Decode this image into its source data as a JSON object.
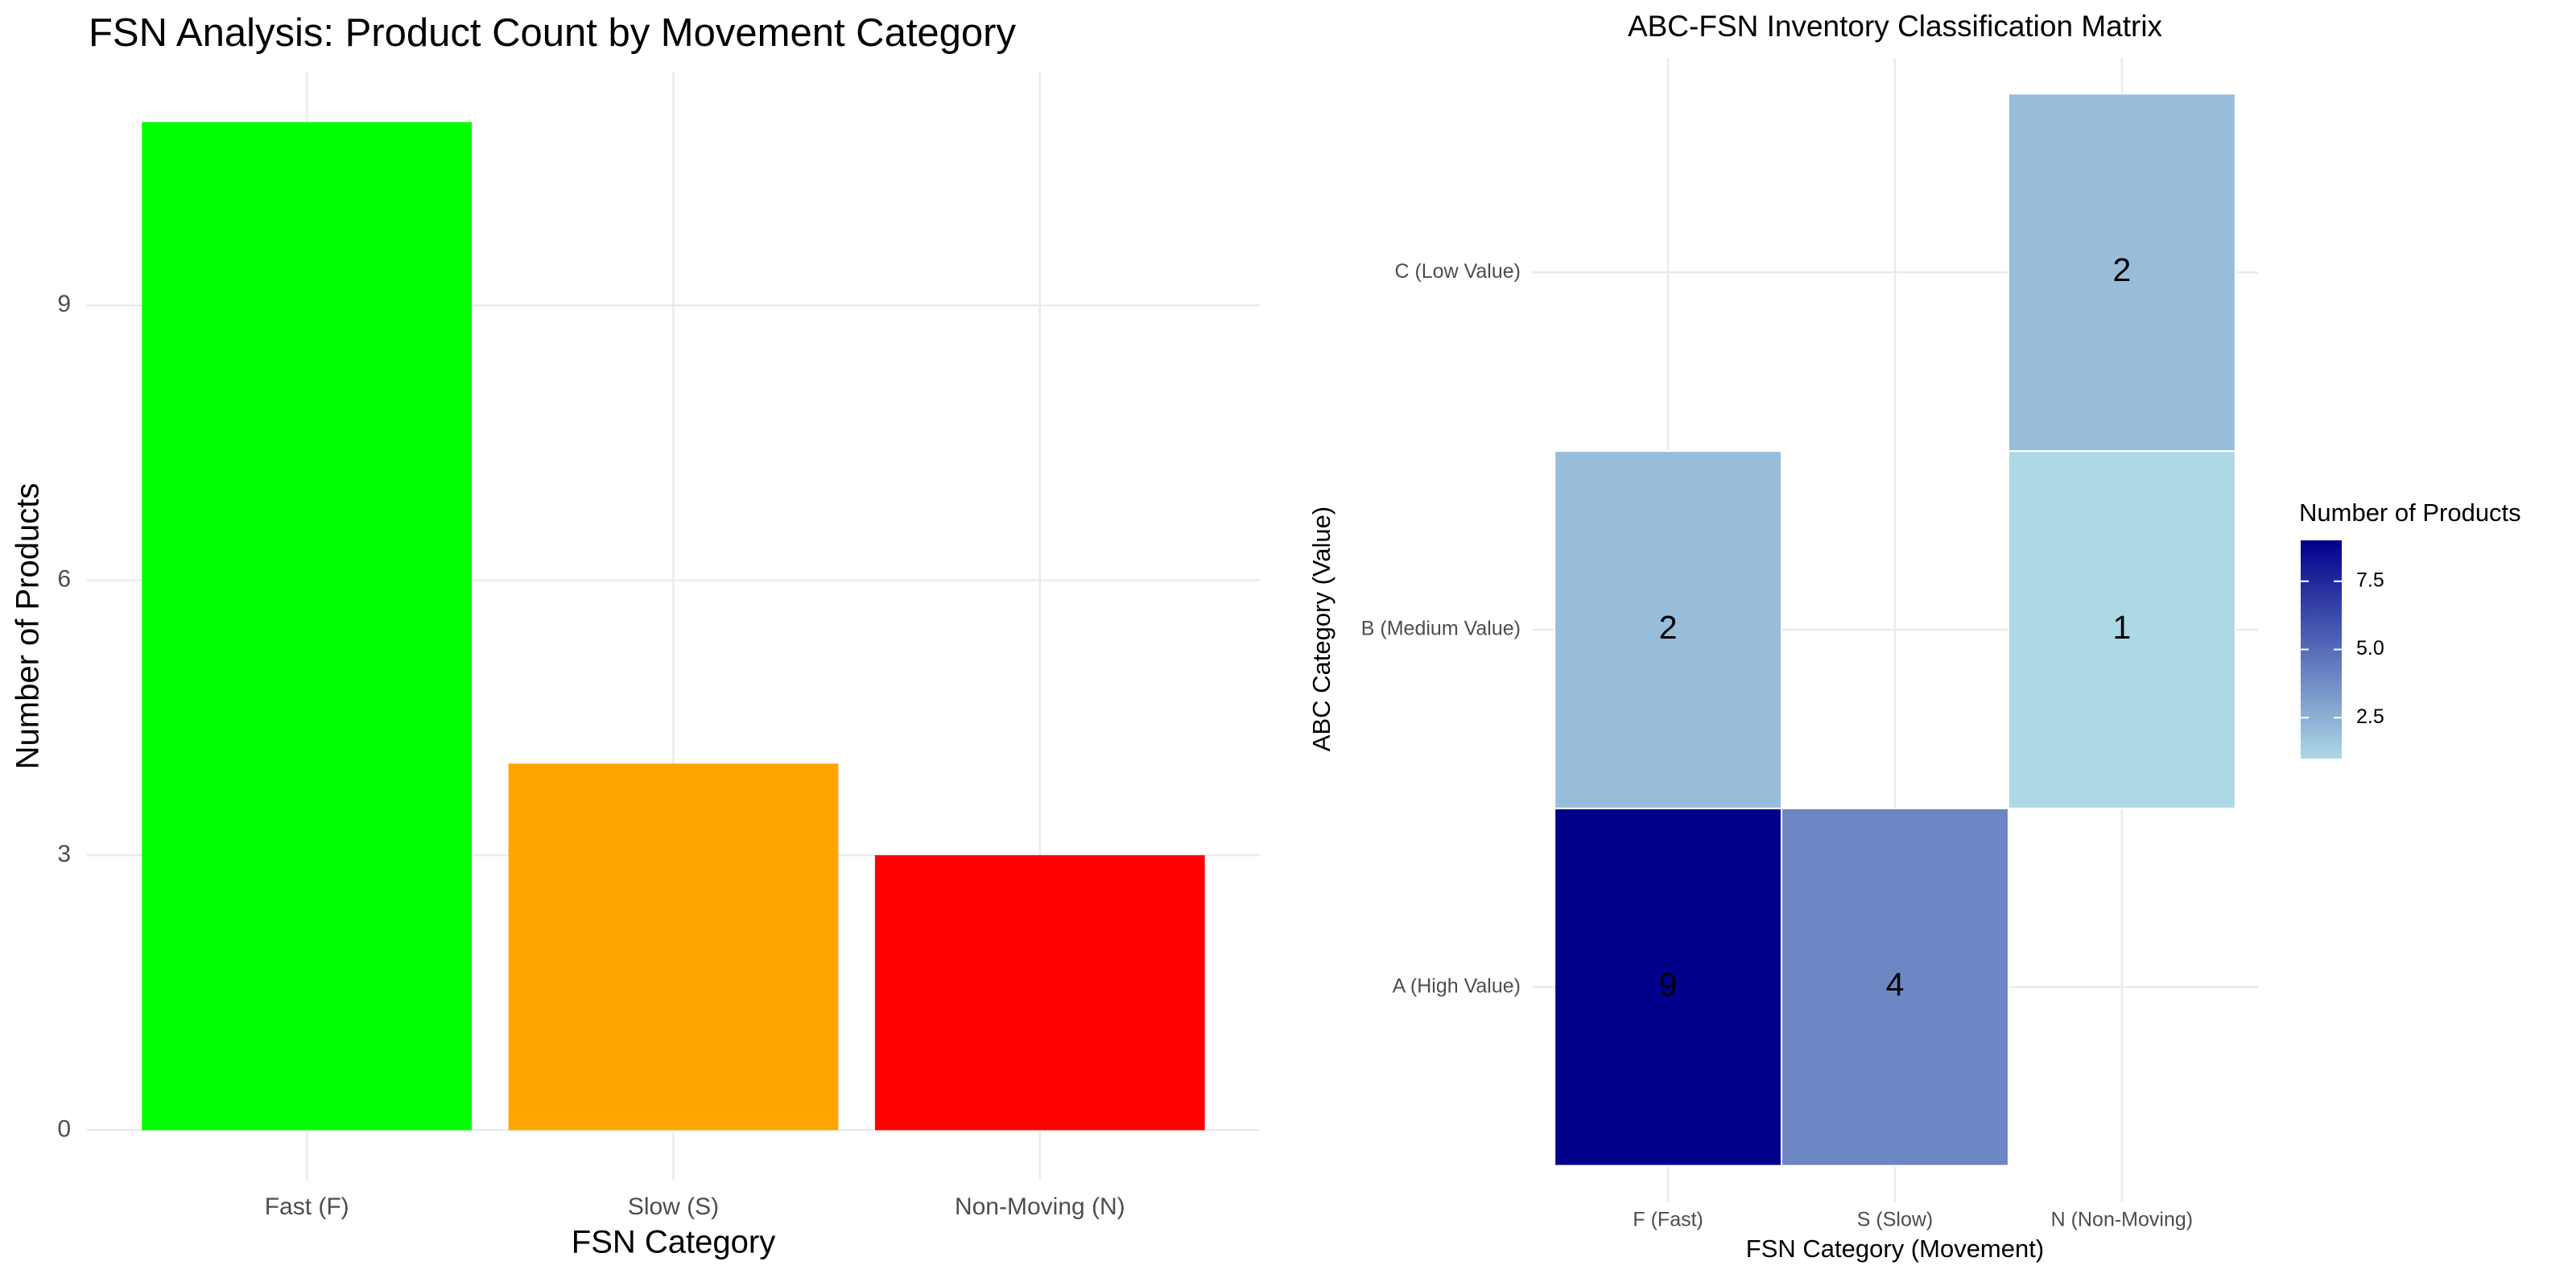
{
  "chart_data": [
    {
      "type": "bar",
      "title": "FSN Analysis: Product Count by Movement Category",
      "x_label": "FSN Category",
      "y_label": "Number of Products",
      "categories": [
        "Fast (F)",
        "Slow (S)",
        "Non-Moving (N)"
      ],
      "values": [
        11,
        4,
        3
      ],
      "colors": [
        "#00ff00",
        "#ffa500",
        "#ff0000"
      ],
      "ylim": [
        -0.55,
        11.55
      ],
      "yticks": [
        0,
        3,
        6,
        9
      ],
      "grid": true
    },
    {
      "type": "heatmap",
      "title": "ABC-FSN Inventory Classification Matrix",
      "x_label": "FSN Category (Movement)",
      "y_label": "ABC Category (Value)",
      "x_categories": [
        "F (Fast)",
        "S (Slow)",
        "N (Non-Moving)"
      ],
      "y_categories": [
        "A (High Value)",
        "B (Medium Value)",
        "C (Low Value)"
      ],
      "values": [
        [
          9,
          4,
          null
        ],
        [
          2,
          null,
          1
        ],
        [
          null,
          null,
          2
        ]
      ],
      "legend_title": "Number of Products",
      "low_color": "#add8e6",
      "high_color": "#00008b",
      "colorbar_lim": [
        1,
        9
      ],
      "colorbar_ticks": [
        2.5,
        {
          "value": 5,
          "label": "5.0"
        },
        {
          "value": 7.5,
          "label": "7.5"
        }
      ],
      "grid": true
    }
  ]
}
